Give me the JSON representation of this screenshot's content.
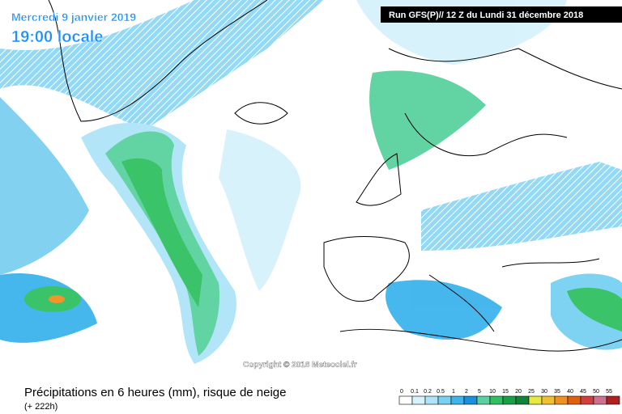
{
  "header": {
    "date": "Mercredi 9 janvier 2019",
    "time": "19:00 locale",
    "run": "Run GFS(P)// 12 Z du Lundi 31 décembre 2018"
  },
  "copyright": "Copyright © 2018 Meteociel.fr",
  "footer": {
    "title": "Précipitations en 6 heures (mm), risque de neige",
    "lead": "(+ 222h)"
  },
  "legend": {
    "labels": [
      0,
      0.1,
      0.2,
      0.5,
      1,
      2,
      5,
      10,
      15,
      20,
      25,
      30,
      35,
      40,
      45,
      50,
      55
    ],
    "colors": [
      "#ffffff",
      "#d6f2fb",
      "#aee4f7",
      "#78d0f2",
      "#3cb4ec",
      "#1890dc",
      "#5ad2a0",
      "#30c060",
      "#18a048",
      "#10843a",
      "#e8e840",
      "#f0c030",
      "#f09020",
      "#e06010",
      "#d04040",
      "#d07090",
      "#b02020"
    ]
  }
}
